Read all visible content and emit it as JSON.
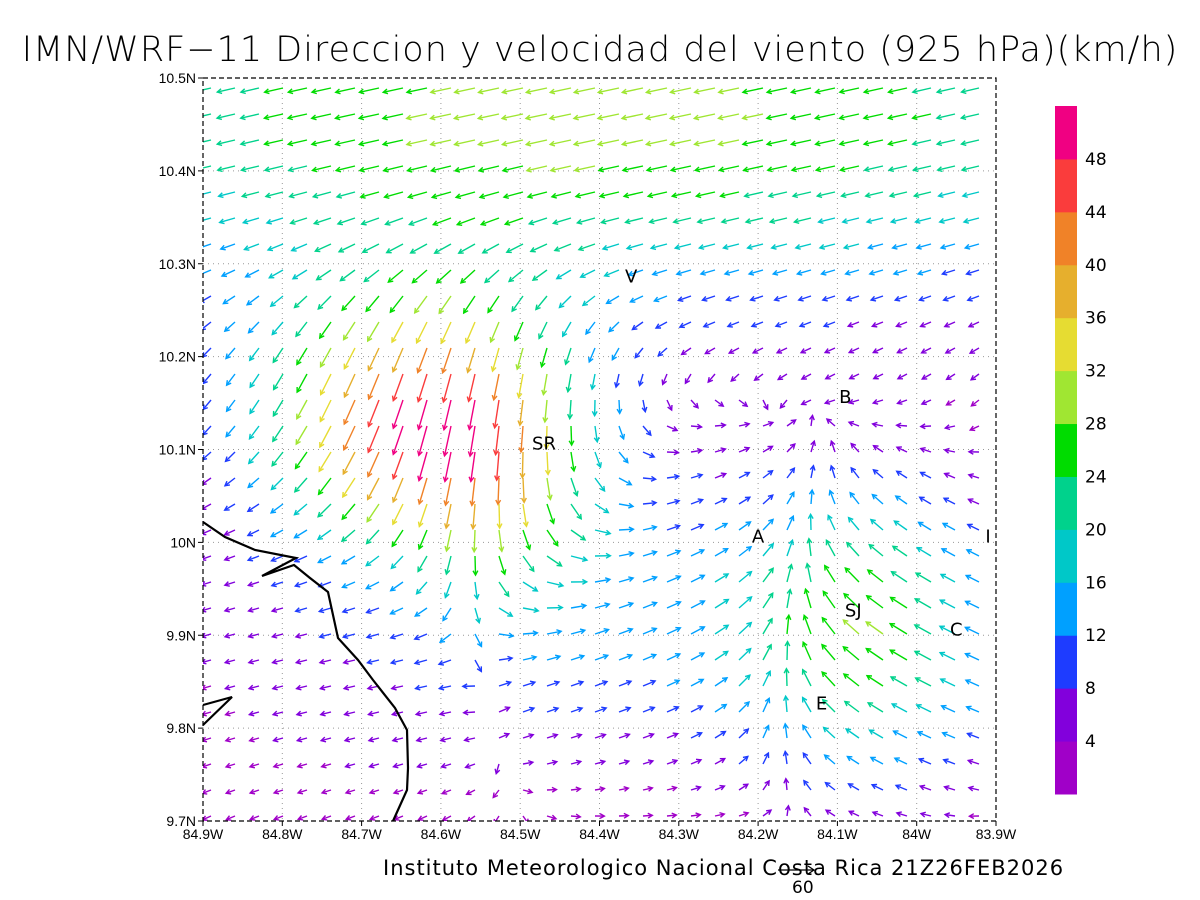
{
  "title": "IMN/WRF−11 Direccion y velocidad del viento (925 hPa)(km/h)",
  "footer": "Instituto Meteorologico Nacional Costa Rica 21Z26FEB2026",
  "reference_vector_label": "60",
  "x_ticks": [
    "84.9W",
    "84.8W",
    "84.7W",
    "84.6W",
    "84.5W",
    "84.4W",
    "84.3W",
    "84.2W",
    "84.1W",
    "84W",
    "83.9W"
  ],
  "y_ticks": [
    "10.5N",
    "10.4N",
    "10.3N",
    "10.2N",
    "10.1N",
    "10N",
    "9.9N",
    "9.8N",
    "9.7N"
  ],
  "colorbar": {
    "labels": [
      "4",
      "8",
      "12",
      "16",
      "20",
      "24",
      "28",
      "32",
      "36",
      "40",
      "44",
      "48"
    ],
    "colors": [
      "#a000c8",
      "#8200dc",
      "#1e3cff",
      "#00a0ff",
      "#00c8c8",
      "#00d28c",
      "#00dc00",
      "#a0e632",
      "#e6dc32",
      "#e6af2d",
      "#f08228",
      "#fa3c3c",
      "#f00082"
    ]
  },
  "places": [
    {
      "label": "V",
      "lon": -84.36,
      "lat": 10.28
    },
    {
      "label": "B",
      "lon": -84.09,
      "lat": 10.15
    },
    {
      "label": "SR",
      "lon": -84.47,
      "lat": 10.1
    },
    {
      "label": "A",
      "lon": -84.2,
      "lat": 10.0
    },
    {
      "label": "I",
      "lon": -83.91,
      "lat": 10.0
    },
    {
      "label": "SJ",
      "lon": -84.08,
      "lat": 9.92
    },
    {
      "label": "C",
      "lon": -83.95,
      "lat": 9.9
    },
    {
      "label": "E",
      "lon": -84.12,
      "lat": 9.82
    }
  ]
}
